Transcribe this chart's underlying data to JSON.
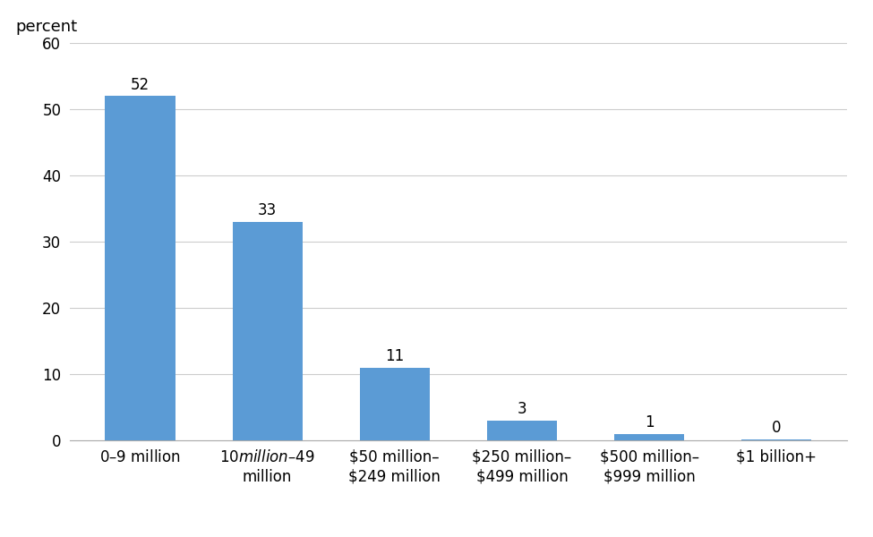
{
  "categories": [
    "$0–$9 million",
    "$10 million–$49\nmillion",
    "$50 million–\n$249 million",
    "$250 million–\n$499 million",
    "$500 million–\n$999 million",
    "$1 billion+"
  ],
  "values": [
    52,
    33,
    11,
    3,
    1,
    0.2
  ],
  "labels": [
    "52",
    "33",
    "11",
    "3",
    "1",
    "0"
  ],
  "bar_color": "#5b9bd5",
  "percent_label": "percent",
  "ylim": [
    0,
    60
  ],
  "yticks": [
    0,
    10,
    20,
    30,
    40,
    50,
    60
  ],
  "background_color": "#ffffff",
  "grid_color": "#cccccc",
  "label_fontsize": 12,
  "tick_fontsize": 12,
  "percent_fontsize": 13
}
